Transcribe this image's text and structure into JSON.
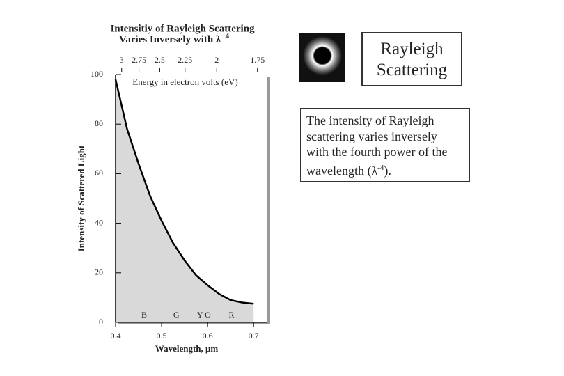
{
  "chart_data": {
    "type": "area",
    "title": "Intensitiy of Rayleigh Scattering",
    "subtitle": {
      "text": "Varies Inversely with λ",
      "superscript": "−4"
    },
    "x_label": "Wavelength, μm",
    "y_label": "Intensity of Scattered Light",
    "x2_label": "Energy in electron volts (eV)",
    "x": [
      0.4,
      0.425,
      0.45,
      0.475,
      0.5,
      0.525,
      0.55,
      0.575,
      0.6,
      0.625,
      0.65,
      0.675,
      0.7
    ],
    "values": [
      98,
      78,
      64,
      51,
      41,
      32,
      25,
      19,
      15,
      11.5,
      9,
      8,
      7.5
    ],
    "color": "#000000",
    "fill_color": "#d9d9d9",
    "xlim": [
      0.4,
      0.73
    ],
    "ylim": [
      0,
      100
    ],
    "xticks": [
      0.4,
      0.5,
      0.6,
      0.7
    ],
    "yticks": [
      0,
      20,
      40,
      60,
      80,
      100
    ],
    "x2ticks": [
      3,
      2.75,
      2.5,
      2.25,
      2,
      1.75
    ],
    "annotations": [
      {
        "text": "B",
        "x": 0.462
      },
      {
        "text": "G",
        "x": 0.532
      },
      {
        "text": "Y O",
        "x": 0.592
      },
      {
        "text": "R",
        "x": 0.652
      }
    ]
  },
  "slide": {
    "heading": [
      "Rayleigh",
      "Scattering"
    ],
    "description": {
      "lines": [
        "The intensity of Rayleigh",
        "scattering varies inversely",
        "with the fourth power of the",
        "wavelength (λ"
      ],
      "superscript": "-4",
      "end": ")."
    }
  }
}
